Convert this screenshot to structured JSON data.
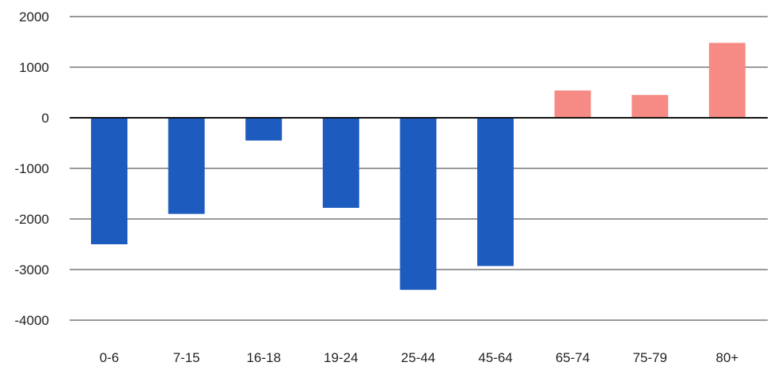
{
  "chart_data": {
    "type": "bar",
    "title": "",
    "xlabel": "",
    "ylabel": "",
    "ylim": [
      -4000,
      2000
    ],
    "yticks": [
      2000,
      1000,
      0,
      -1000,
      -2000,
      -3000,
      -4000
    ],
    "ytick_labels": [
      "2000",
      "1000",
      "0",
      "-1000",
      "-2000",
      "-3000",
      "-4000"
    ],
    "grid": true,
    "legend": "none",
    "categories": [
      "0-6",
      "7-15",
      "16-18",
      "19-24",
      "25-44",
      "45-64",
      "65-74",
      "75-79",
      "80+"
    ],
    "values": [
      -2500,
      -1900,
      -450,
      -1780,
      -3400,
      -2930,
      540,
      450,
      1480
    ],
    "colors": {
      "negative": "#1d5bbf",
      "positive": "#f58b84"
    }
  }
}
